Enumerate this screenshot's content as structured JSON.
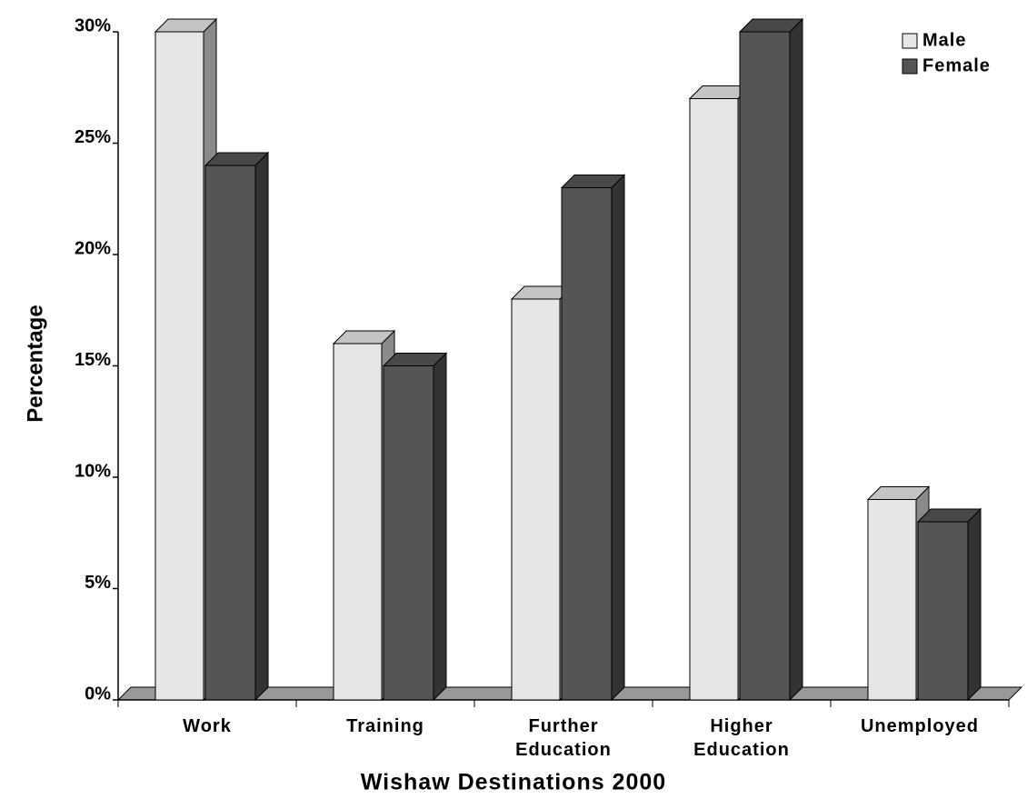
{
  "chart_data": {
    "type": "bar3d",
    "xlabel": "Wishaw Destinations 2000",
    "ylabel": "Percentage",
    "categories": [
      "Work",
      "Training",
      "Further Education",
      "Higher Education",
      "Unemployed"
    ],
    "series": [
      {
        "name": "Male",
        "color": "#e6e6e6",
        "values": [
          30,
          16,
          18,
          27,
          9
        ]
      },
      {
        "name": "Female",
        "color": "#555555",
        "values": [
          24,
          15,
          23,
          30,
          8
        ]
      }
    ],
    "ylim": [
      0,
      30
    ],
    "yticks": [
      {
        "value": 0,
        "label": "0%"
      },
      {
        "value": 5,
        "label": "5%"
      },
      {
        "value": 10,
        "label": "10%"
      },
      {
        "value": 15,
        "label": "15%"
      },
      {
        "value": 20,
        "label": "20%"
      },
      {
        "value": 25,
        "label": "25%"
      },
      {
        "value": 30,
        "label": "30%"
      }
    ],
    "legend": "top-right"
  }
}
